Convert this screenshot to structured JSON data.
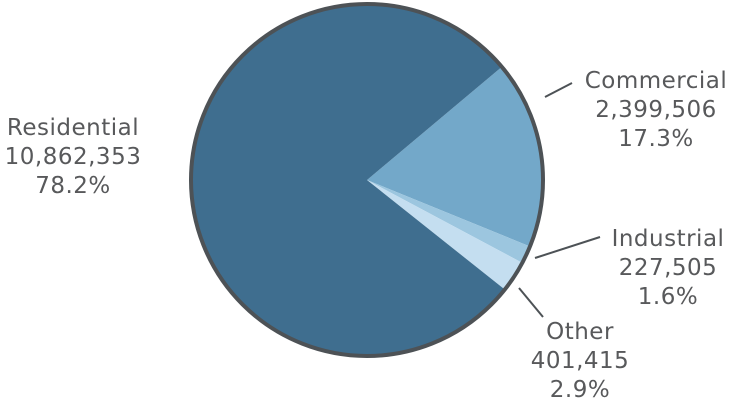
{
  "chart_data": {
    "type": "pie",
    "title": "",
    "slices": [
      {
        "label": "Residential",
        "value": 10862353,
        "value_text": "10,862,353",
        "percent": 78.2,
        "percent_text": "78.2%",
        "color": "#3f6e8f"
      },
      {
        "label": "Commercial",
        "value": 2399506,
        "value_text": "2,399,506",
        "percent": 17.3,
        "percent_text": "17.3%",
        "color": "#73a8c9"
      },
      {
        "label": "Industrial",
        "value": 227505,
        "value_text": "227,505",
        "percent": 1.6,
        "percent_text": "1.6%",
        "color": "#9cc6df"
      },
      {
        "label": "Other",
        "value": 401415,
        "value_text": "401,415",
        "percent": 2.9,
        "percent_text": "2.9%",
        "color": "#c4def0"
      }
    ],
    "colors": {
      "outline": "#4d5256",
      "label_text": "#58595b"
    }
  }
}
